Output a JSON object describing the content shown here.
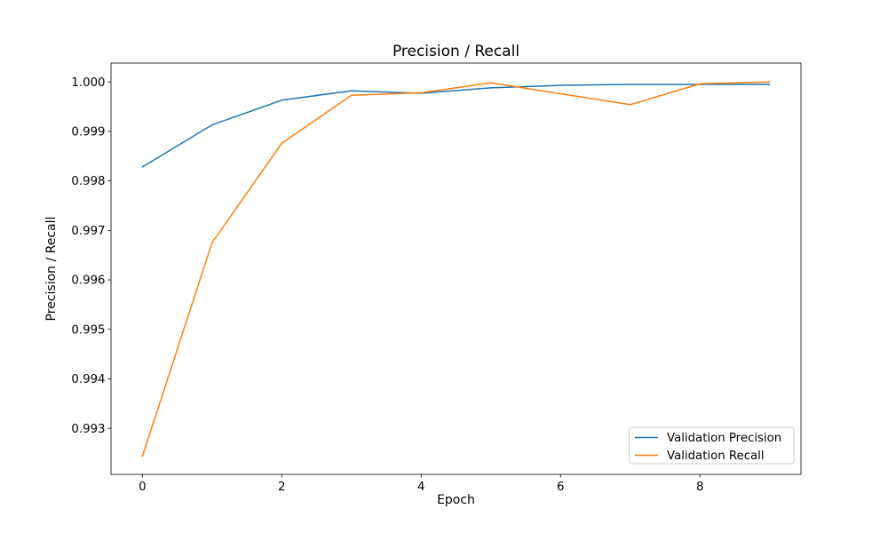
{
  "chart_data": {
    "type": "line",
    "title": "Precision / Recall",
    "xlabel": "Epoch",
    "ylabel": "Precision / Recall",
    "x": [
      0,
      1,
      2,
      3,
      4,
      5,
      6,
      7,
      8,
      9
    ],
    "series": [
      {
        "name": "Validation Precision",
        "color": "#1f77b4",
        "values": [
          0.99828,
          0.99913,
          0.99963,
          0.99982,
          0.99977,
          0.99988,
          0.99993,
          0.99995,
          0.99995,
          0.99995
        ]
      },
      {
        "name": "Validation Recall",
        "color": "#ff7f0e",
        "values": [
          0.99243,
          0.99675,
          0.99876,
          0.99973,
          0.99978,
          0.99998,
          0.99976,
          0.99954,
          0.99996,
          1.0
        ]
      }
    ],
    "xlim": [
      -0.45,
      9.45
    ],
    "ylim": [
      0.99207,
      1.00038
    ],
    "xticks": [
      0,
      2,
      4,
      6,
      8
    ],
    "xtick_labels": [
      "0",
      "2",
      "4",
      "6",
      "8"
    ],
    "yticks": [
      0.993,
      0.994,
      0.995,
      0.996,
      0.997,
      0.998,
      0.999,
      1.0
    ],
    "ytick_labels": [
      "0.993",
      "0.994",
      "0.995",
      "0.996",
      "0.997",
      "0.998",
      "0.999",
      "1.000"
    ],
    "grid": false,
    "legend": {
      "position": "lower right"
    },
    "axes_color": "#000000",
    "background": "#ffffff"
  }
}
